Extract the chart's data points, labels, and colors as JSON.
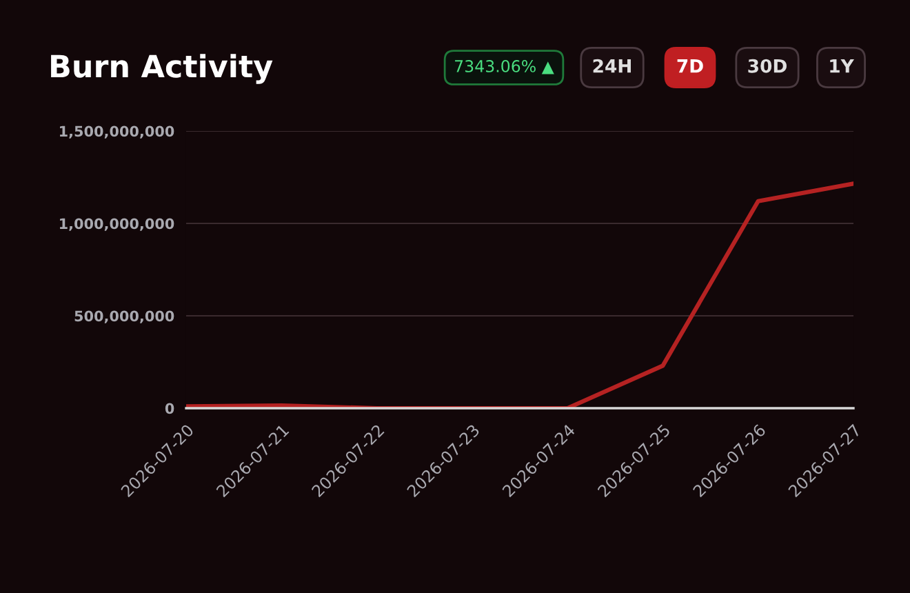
{
  "chart_data": {
    "type": "line",
    "title": "Burn Activity",
    "annotations": [
      "7343.06% ▲",
      "24H",
      "7D",
      "30D",
      "1Y"
    ],
    "x": [
      "2026-07-20",
      "2026-07-21",
      "2026-07-22",
      "2026-07-23",
      "2026-07-24",
      "2026-07-25",
      "2026-07-26",
      "2026-07-27"
    ],
    "series": [
      {
        "color": "#b52222",
        "values": [
          10000000,
          15000000,
          0,
          0,
          0,
          230000000,
          1120000000,
          1215000000
        ]
      }
    ],
    "xlim": [
      "2026-07-20",
      "2026-07-27"
    ],
    "xticks": [
      "2026-07-20",
      "2026-07-21",
      "2026-07-22",
      "2026-07-23",
      "2026-07-24",
      "2026-07-25",
      "2026-07-26",
      "2026-07-27"
    ],
    "ylim": [
      0,
      1500000000
    ],
    "yticks": [
      {
        "value": 0,
        "label": "0"
      },
      {
        "value": 500000000,
        "label": "500,000,000"
      },
      {
        "value": 1000000000,
        "label": "1,000,000,000"
      },
      {
        "value": 1500000000,
        "label": "1,500,000,000"
      }
    ],
    "grid": "y",
    "marker": "none",
    "line_style": "solid"
  }
}
